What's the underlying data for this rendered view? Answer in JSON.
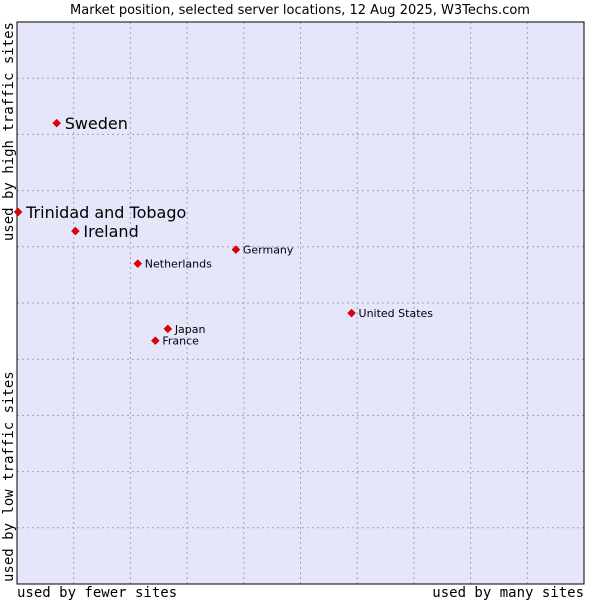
{
  "chart_data": {
    "type": "scatter",
    "title": "Market position, selected server locations, 12 Aug 2025, W3Techs.com",
    "xlabel_left": "used by fewer sites",
    "xlabel_right": "used by many sites",
    "ylabel_bottom": "used by low traffic sites",
    "ylabel_top": "used by high traffic sites",
    "grid": true,
    "xlim": [
      0,
      10
    ],
    "ylim": [
      0,
      10
    ],
    "colors": {
      "plot_background": "#e6e6fa",
      "grid": "#a0a0c0",
      "marker": "#e00000",
      "border": "#000000"
    },
    "points": [
      {
        "name": "Sweden",
        "x": 0.7,
        "y": 8.2,
        "size": "large"
      },
      {
        "name": "Trinidad and Tobago",
        "x": 0.02,
        "y": 6.62,
        "size": "large"
      },
      {
        "name": "Ireland",
        "x": 1.03,
        "y": 6.28,
        "size": "large"
      },
      {
        "name": "Germany",
        "x": 3.86,
        "y": 5.95,
        "size": "small"
      },
      {
        "name": "Netherlands",
        "x": 2.13,
        "y": 5.7,
        "size": "small"
      },
      {
        "name": "United States",
        "x": 5.9,
        "y": 4.82,
        "size": "small"
      },
      {
        "name": "Japan",
        "x": 2.66,
        "y": 4.54,
        "size": "small"
      },
      {
        "name": "France",
        "x": 2.44,
        "y": 4.33,
        "size": "small"
      }
    ]
  }
}
